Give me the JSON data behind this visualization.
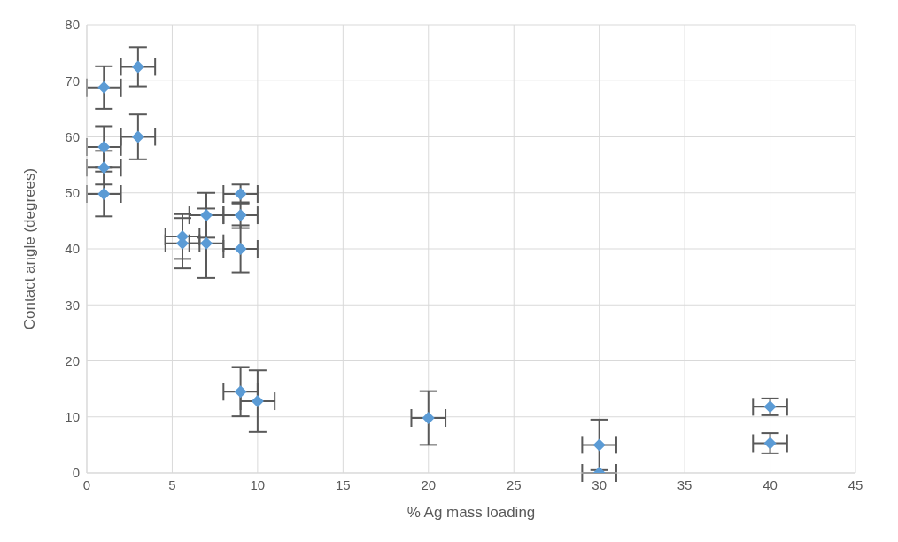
{
  "chart_data": {
    "type": "scatter",
    "xlabel": "% Ag mass loading",
    "ylabel": "Contact angle (degrees)",
    "x": [
      1,
      3,
      1,
      3,
      1,
      1,
      5.6,
      5.6,
      7,
      7,
      9,
      9,
      9,
      9,
      10,
      20,
      30,
      30,
      40,
      40
    ],
    "values": [
      68.8,
      72.5,
      58.2,
      60,
      54.5,
      49.8,
      42.2,
      41,
      46,
      41,
      49.8,
      46,
      40,
      14.5,
      12.8,
      9.8,
      5,
      0,
      11.8,
      5.3
    ],
    "errors": [
      3.8,
      3.5,
      3.7,
      4,
      3,
      4,
      4,
      4.5,
      4,
      6.2,
      1.7,
      2.3,
      4.2,
      4.4,
      5.5,
      4.8,
      4.5,
      0,
      1.5,
      1.8
    ],
    "xerrors": [
      1,
      1,
      1,
      1,
      1,
      1,
      1,
      1,
      1,
      1,
      1,
      1,
      1,
      1,
      1,
      1,
      1,
      1,
      1,
      1
    ],
    "color": "#5b9bd5",
    "marker": "diamond",
    "xlim": [
      0,
      45
    ],
    "xticks": [
      0,
      5,
      10,
      15,
      20,
      25,
      30,
      35,
      40,
      45
    ],
    "ylim": [
      0,
      80
    ],
    "yticks": [
      0,
      10,
      20,
      30,
      40,
      50,
      60,
      70,
      80
    ],
    "grid": true
  }
}
